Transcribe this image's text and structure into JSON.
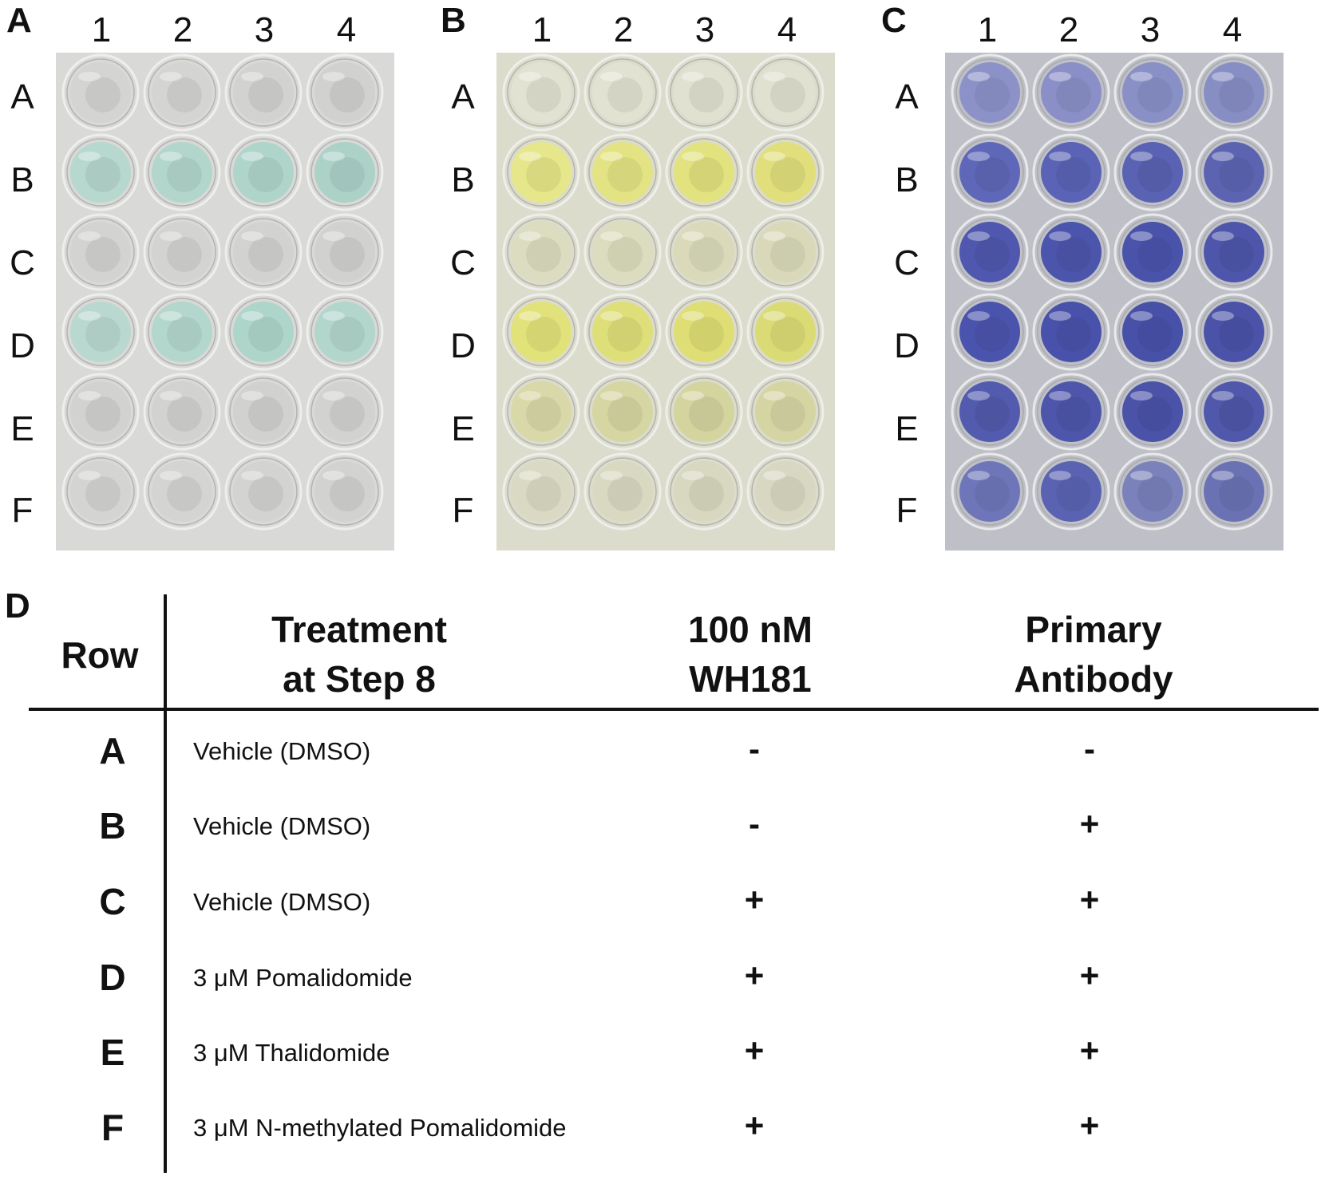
{
  "panels": [
    {
      "letter": "A",
      "stain": "green"
    },
    {
      "letter": "B",
      "stain": "yellow"
    },
    {
      "letter": "C",
      "stain": "blue"
    }
  ],
  "plate_columns": [
    "1",
    "2",
    "3",
    "4"
  ],
  "plate_rows": [
    "A",
    "B",
    "C",
    "D",
    "E",
    "F"
  ],
  "well_colors": {
    "A": [
      "#d4d4d2",
      "#d4d4d2",
      "#d2d3d1",
      "#d1d2d0",
      "#b6d8cf",
      "#b3d6cc",
      "#afd4ca",
      "#acd2c8",
      "#d3d4d2",
      "#d3d4d2",
      "#d2d3d1",
      "#d1d2d0",
      "#b9d9d0",
      "#b4d7cd",
      "#aed5ca",
      "#b2d6cc",
      "#d2d3d1",
      "#d2d3d1",
      "#d1d2d0",
      "#d2d3d1",
      "#d4d4d2",
      "#d4d4d2",
      "#d3d3d1",
      "#d2d3d1"
    ],
    "B": [
      "#e2e2d2",
      "#e2e2d2",
      "#e1e1d1",
      "#e1e1d1",
      "#e6e68a",
      "#e3e383",
      "#e2e27e",
      "#e0df7c",
      "#dcdcc0",
      "#dcdcbe",
      "#dadabb",
      "#d9d9ba",
      "#e2e27a",
      "#dfdf79",
      "#dede74",
      "#dbdb76",
      "#d8d8a8",
      "#d6d6a2",
      "#d4d49f",
      "#d5d5a4",
      "#dadac4",
      "#d9d9c2",
      "#d8d8c0",
      "#d8d8c2"
    ],
    "C": [
      "#8c92c8",
      "#8a90c7",
      "#8990c6",
      "#878ec4",
      "#5f68b8",
      "#5a63b5",
      "#5a62b3",
      "#5c64b2",
      "#4f58ae",
      "#4c55ac",
      "#4a53aa",
      "#4d56aa",
      "#4b54ac",
      "#4952aa",
      "#4851a8",
      "#4a53a8",
      "#525bae",
      "#4d56ab",
      "#4a53a8",
      "#4f58aa",
      "#6e76b9",
      "#5a63b2",
      "#7a81bb",
      "#6a72b4"
    ]
  },
  "plate_bg": {
    "A": "#d9d9d7",
    "B": "#dcdccc",
    "C": "#bfc0c7"
  },
  "table_panel_letter": "D",
  "table": {
    "headers": {
      "row": "Row",
      "treatment_1": "Treatment",
      "treatment_2": "at Step 8",
      "wh181_1": "100 nM",
      "wh181_2": "WH181",
      "antibody_1": "Primary",
      "antibody_2": "Antibody"
    },
    "rows": [
      {
        "row": "A",
        "treatment": "Vehicle (DMSO)",
        "wh181": "-",
        "antibody": "-"
      },
      {
        "row": "B",
        "treatment": "Vehicle (DMSO)",
        "wh181": "-",
        "antibody": "+"
      },
      {
        "row": "C",
        "treatment": "Vehicle (DMSO)",
        "wh181": "+",
        "antibody": "+"
      },
      {
        "row": "D",
        "treatment": "3 μM Pomalidomide",
        "wh181": "+",
        "antibody": "+"
      },
      {
        "row": "E",
        "treatment": "3 μM Thalidomide",
        "wh181": "+",
        "antibody": "+"
      },
      {
        "row": "F",
        "treatment": "3 μM N-methylated Pomalidomide",
        "wh181": "+",
        "antibody": "+"
      }
    ]
  }
}
